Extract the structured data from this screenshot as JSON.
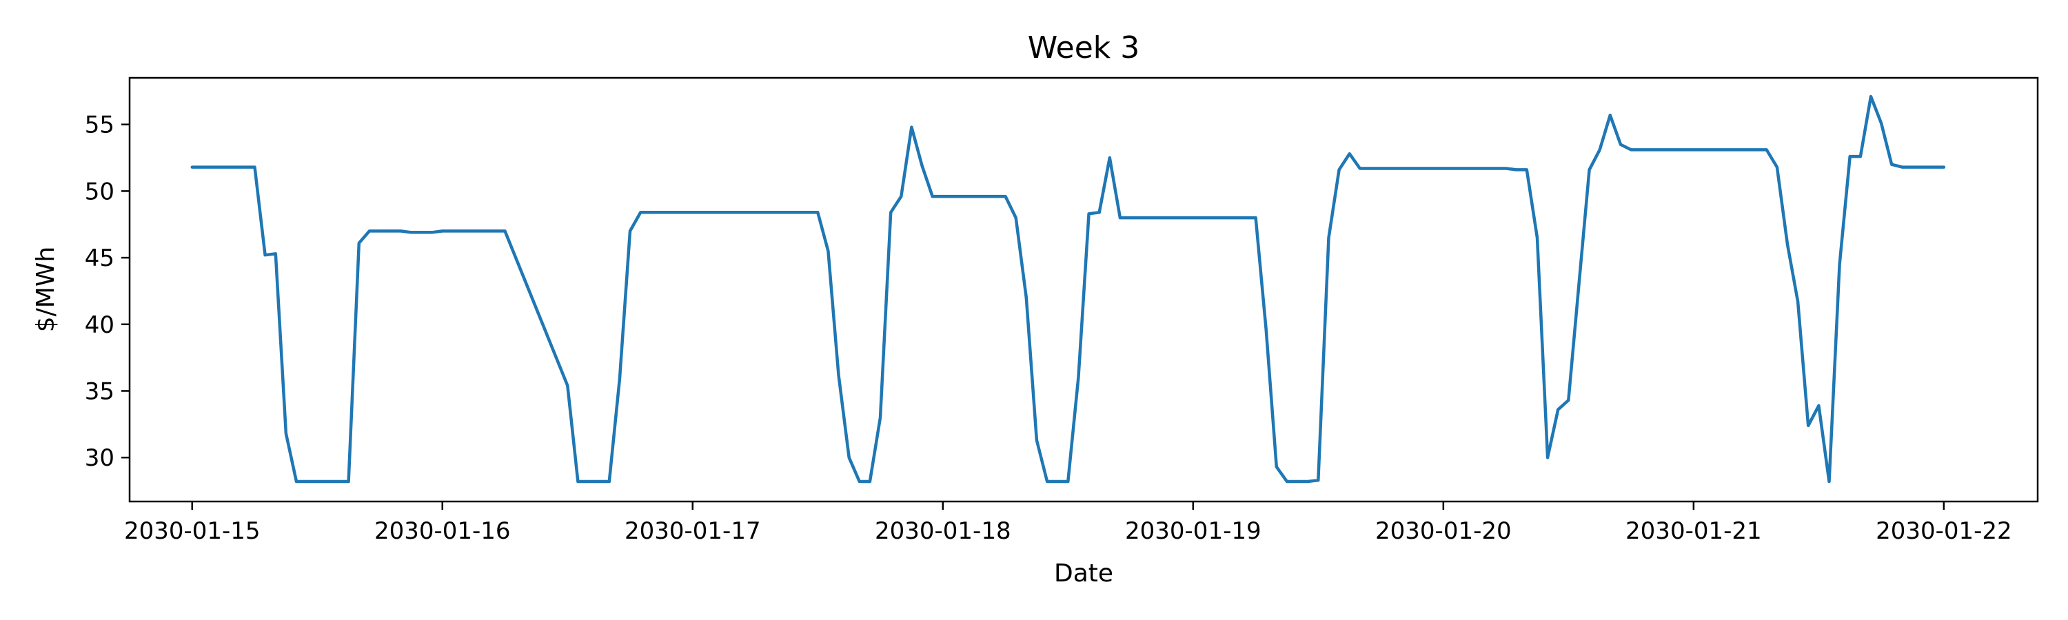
{
  "chart_data": {
    "type": "line",
    "title": "Week 3",
    "xlabel": "Date",
    "ylabel": "$/MWh",
    "grid": false,
    "legend": "none",
    "x_ticks": [
      "2030-01-15",
      "2030-01-16",
      "2030-01-17",
      "2030-01-18",
      "2030-01-19",
      "2030-01-20",
      "2030-01-21",
      "2030-01-22"
    ],
    "y_ticks": [
      30,
      35,
      40,
      45,
      50,
      55
    ],
    "xlim": [
      "2030-01-14T18:00",
      "2030-01-22T09:00"
    ],
    "ylim": [
      26.7,
      58.5
    ],
    "colors": {
      "series": "#1f77b4"
    },
    "series": [
      {
        "x": [
          "2030-01-15T00:00",
          "2030-01-15T01:00",
          "2030-01-15T02:00",
          "2030-01-15T03:00",
          "2030-01-15T04:00",
          "2030-01-15T05:00",
          "2030-01-15T06:00",
          "2030-01-15T07:00",
          "2030-01-15T08:00",
          "2030-01-15T09:00",
          "2030-01-15T10:00",
          "2030-01-15T11:00",
          "2030-01-15T12:00",
          "2030-01-15T13:00",
          "2030-01-15T14:00",
          "2030-01-15T15:00",
          "2030-01-15T16:00",
          "2030-01-15T17:00",
          "2030-01-15T18:00",
          "2030-01-15T19:00",
          "2030-01-15T20:00",
          "2030-01-15T21:00",
          "2030-01-15T22:00",
          "2030-01-15T23:00",
          "2030-01-16T00:00",
          "2030-01-16T06:00",
          "2030-01-16T12:00",
          "2030-01-16T13:00",
          "2030-01-16T14:00",
          "2030-01-16T15:00",
          "2030-01-16T16:00",
          "2030-01-16T17:00",
          "2030-01-16T18:00",
          "2030-01-16T19:00",
          "2030-01-16T20:00",
          "2030-01-16T21:00",
          "2030-01-16T22:00",
          "2030-01-16T23:00",
          "2030-01-17T00:00",
          "2030-01-17T06:00",
          "2030-01-17T12:00",
          "2030-01-17T13:00",
          "2030-01-17T14:00",
          "2030-01-17T15:00",
          "2030-01-17T16:00",
          "2030-01-17T17:00",
          "2030-01-17T18:00",
          "2030-01-17T19:00",
          "2030-01-17T20:00",
          "2030-01-17T21:00",
          "2030-01-17T22:00",
          "2030-01-17T23:00",
          "2030-01-18T00:00",
          "2030-01-18T06:00",
          "2030-01-18T07:00",
          "2030-01-18T08:00",
          "2030-01-18T09:00",
          "2030-01-18T10:00",
          "2030-01-18T11:00",
          "2030-01-18T12:00",
          "2030-01-18T13:00",
          "2030-01-18T14:00",
          "2030-01-18T15:00",
          "2030-01-18T16:00",
          "2030-01-18T17:00",
          "2030-01-18T18:00",
          "2030-01-18T19:00",
          "2030-01-18T20:00",
          "2030-01-18T21:00",
          "2030-01-18T22:00",
          "2030-01-18T23:00",
          "2030-01-19T00:00",
          "2030-01-19T06:00",
          "2030-01-19T07:00",
          "2030-01-19T08:00",
          "2030-01-19T09:00",
          "2030-01-19T10:00",
          "2030-01-19T11:00",
          "2030-01-19T12:00",
          "2030-01-19T13:00",
          "2030-01-19T14:00",
          "2030-01-19T15:00",
          "2030-01-19T16:00",
          "2030-01-19T17:00",
          "2030-01-19T18:00",
          "2030-01-19T19:00",
          "2030-01-19T20:00",
          "2030-01-19T21:00",
          "2030-01-19T22:00",
          "2030-01-19T23:00",
          "2030-01-20T00:00",
          "2030-01-20T06:00",
          "2030-01-20T07:00",
          "2030-01-20T08:00",
          "2030-01-20T09:00",
          "2030-01-20T10:00",
          "2030-01-20T11:00",
          "2030-01-20T12:00",
          "2030-01-20T13:00",
          "2030-01-20T14:00",
          "2030-01-20T15:00",
          "2030-01-20T16:00",
          "2030-01-20T17:00",
          "2030-01-20T18:00",
          "2030-01-20T19:00",
          "2030-01-20T20:00",
          "2030-01-20T21:00",
          "2030-01-20T22:00",
          "2030-01-20T23:00",
          "2030-01-21T00:00",
          "2030-01-21T06:00",
          "2030-01-21T07:00",
          "2030-01-21T08:00",
          "2030-01-21T09:00",
          "2030-01-21T10:00",
          "2030-01-21T11:00",
          "2030-01-21T12:00",
          "2030-01-21T13:00",
          "2030-01-21T14:00",
          "2030-01-21T15:00",
          "2030-01-21T16:00",
          "2030-01-21T17:00",
          "2030-01-21T18:00",
          "2030-01-21T19:00",
          "2030-01-21T20:00",
          "2030-01-21T21:00",
          "2030-01-21T22:00",
          "2030-01-21T23:00",
          "2030-01-22T00:00"
        ],
        "values": [
          51.8,
          51.8,
          51.8,
          51.8,
          51.8,
          51.8,
          51.8,
          45.2,
          45.3,
          31.8,
          28.2,
          28.2,
          28.2,
          28.2,
          28.2,
          28.2,
          46.1,
          47.0,
          47.0,
          47.0,
          47.0,
          46.9,
          46.9,
          46.9,
          47.0,
          47.0,
          35.4,
          28.2,
          28.2,
          28.2,
          28.2,
          35.9,
          47.0,
          48.4,
          48.4,
          48.4,
          48.4,
          48.4,
          48.4,
          48.4,
          48.4,
          45.5,
          36.2,
          30.0,
          28.2,
          28.2,
          33.0,
          48.4,
          49.6,
          54.8,
          51.9,
          49.6,
          49.6,
          49.6,
          48.0,
          42.0,
          31.3,
          28.2,
          28.2,
          28.2,
          36.0,
          48.3,
          48.4,
          52.5,
          48.0,
          48.0,
          48.0,
          48.0,
          48.0,
          48.0,
          48.0,
          48.0,
          48.0,
          39.6,
          29.3,
          28.2,
          28.2,
          28.2,
          28.3,
          46.5,
          51.6,
          52.8,
          51.7,
          51.7,
          51.7,
          51.7,
          51.7,
          51.7,
          51.7,
          51.7,
          51.7,
          51.7,
          51.6,
          51.6,
          46.5,
          30.0,
          33.6,
          34.3,
          43.0,
          51.6,
          53.1,
          55.7,
          53.5,
          53.1,
          53.1,
          53.1,
          53.1,
          53.1,
          53.1,
          53.1,
          53.1,
          53.1,
          51.8,
          46.0,
          41.7,
          32.4,
          33.9,
          28.2,
          44.5,
          52.6,
          52.6,
          57.1,
          55.1,
          52.0,
          51.8,
          51.8,
          51.8,
          51.8,
          51.8
        ]
      }
    ]
  }
}
